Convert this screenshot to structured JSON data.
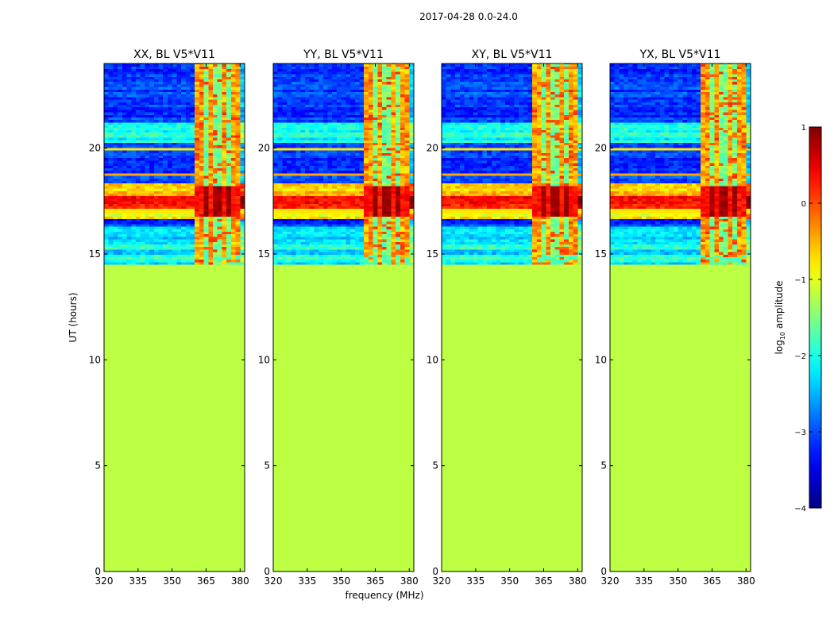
{
  "chart_data": {
    "type": "heatmap",
    "suptitle": "2017-04-28 0.0-24.0",
    "xlabel": "frequency (MHz)",
    "ylabel": "UT (hours)",
    "xlim": [
      320,
      382
    ],
    "ylim": [
      0,
      24
    ],
    "xticks": [
      320,
      335,
      350,
      365,
      380
    ],
    "yticks": [
      0,
      5,
      10,
      15,
      20
    ],
    "panels": [
      {
        "title": "XX, BL V5*V11"
      },
      {
        "title": "YY, BL V5*V11"
      },
      {
        "title": "XY, BL V5*V11"
      },
      {
        "title": "YX, BL V5*V11"
      }
    ],
    "data_start_hour": 14.5,
    "no_data_log_amplitude": -1.2,
    "rfi_band_mhz": [
      360,
      380
    ],
    "rfi_channels_mhz": [
      365,
      370,
      375
    ],
    "strong_emission_hours": [
      17.0,
      17.8
    ],
    "colorbar": {
      "label_base": "log",
      "label_sub": "10",
      "label_rest": " amplitude",
      "ticks": [
        1,
        0,
        -1,
        -2,
        -3,
        -4
      ],
      "tick_labels": [
        "1",
        "0",
        "−1",
        "−2",
        "−3",
        "−4"
      ],
      "range": [
        -4,
        1
      ],
      "colormap": "jet"
    }
  }
}
